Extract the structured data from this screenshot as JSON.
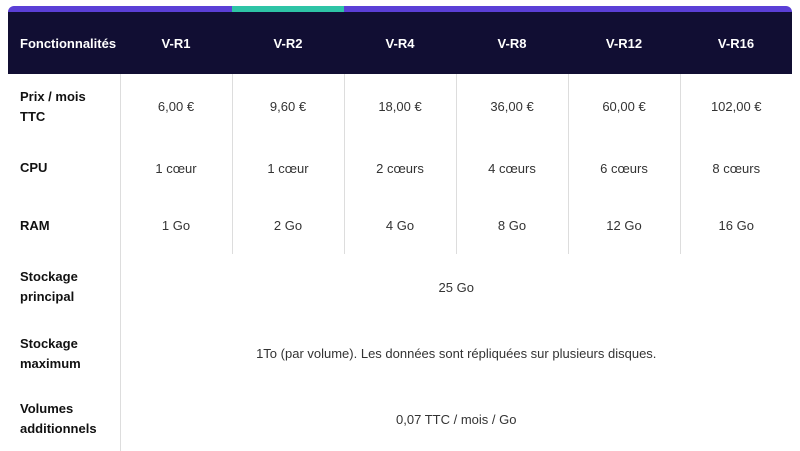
{
  "colors": {
    "accent": "#5b3fd6",
    "highlight": "#2ec4a6",
    "header_bg": "#110e33"
  },
  "header": [
    "Fonctionnalités",
    "V-R1",
    "V-R2",
    "V-R4",
    "V-R8",
    "V-R12",
    "V-R16"
  ],
  "rows": [
    {
      "label": "Prix / mois TTC",
      "values": [
        "6,00 €",
        "9,60 €",
        "18,00 €",
        "36,00 €",
        "60,00 €",
        "102,00 €"
      ]
    },
    {
      "label": "CPU",
      "values": [
        "1 cœur",
        "1 cœur",
        "2 cœurs",
        "4 cœurs",
        "6 cœurs",
        "8 cœurs"
      ]
    },
    {
      "label": "RAM",
      "values": [
        "1 Go",
        "2 Go",
        "4 Go",
        "8 Go",
        "12 Go",
        "16 Go"
      ]
    }
  ],
  "merged_rows": [
    {
      "label": "Stockage principal",
      "value": "25 Go"
    },
    {
      "label": "Stockage maximum",
      "value": "1To (par volume). Les données sont répliquées sur plusieurs disques."
    },
    {
      "label": "Volumes additionnels",
      "value": "0,07 TTC / mois / Go"
    }
  ]
}
